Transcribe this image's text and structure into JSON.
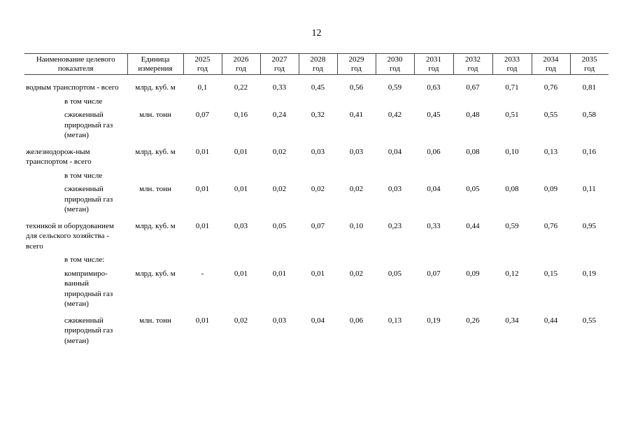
{
  "page_number": "12",
  "table": {
    "header": {
      "name": [
        "Наименование целевого",
        "показателя"
      ],
      "unit": [
        "Единица",
        "измерения"
      ],
      "years": [
        [
          "2025",
          "год"
        ],
        [
          "2026",
          "год"
        ],
        [
          "2027",
          "год"
        ],
        [
          "2028",
          "год"
        ],
        [
          "2029",
          "год"
        ],
        [
          "2030",
          "год"
        ],
        [
          "2031",
          "год"
        ],
        [
          "2032",
          "год"
        ],
        [
          "2033",
          "год"
        ],
        [
          "2034",
          "год"
        ],
        [
          "2035",
          "год"
        ]
      ]
    },
    "rows": [
      {
        "name": "водным транспортом - всего",
        "sub": false,
        "unit": "млрд. куб. м",
        "values": [
          "0,1",
          "0,22",
          "0,33",
          "0,45",
          "0,56",
          "0,59",
          "0,63",
          "0,67",
          "0,71",
          "0,76",
          "0,81"
        ]
      },
      {
        "name": "в том числе",
        "sub": true,
        "unit": "",
        "values": []
      },
      {
        "name": "сжиженный природный газ (метан)",
        "sub": true,
        "unit": "млн. тонн",
        "values": [
          "0,07",
          "0,16",
          "0,24",
          "0,32",
          "0,41",
          "0,42",
          "0,45",
          "0,48",
          "0,51",
          "0,55",
          "0,58"
        ]
      },
      {
        "name": "железнодорож-ным транспортом - всего",
        "sub": false,
        "unit": "млрд. куб. м",
        "values": [
          "0,01",
          "0,01",
          "0,02",
          "0,03",
          "0,03",
          "0,04",
          "0,06",
          "0,08",
          "0,10",
          "0,13",
          "0,16"
        ]
      },
      {
        "name": "в том числе",
        "sub": true,
        "unit": "",
        "values": []
      },
      {
        "name": "сжиженный природный газ (метан)",
        "sub": true,
        "unit": "млн. тонн",
        "values": [
          "0,01",
          "0,01",
          "0,02",
          "0,02",
          "0,02",
          "0,03",
          "0,04",
          "0,05",
          "0,08",
          "0,09",
          "0,11"
        ]
      },
      {
        "name": "техникой и оборудованием для сельского хозяйства - всего",
        "sub": false,
        "unit": "млрд. куб. м",
        "values": [
          "0,01",
          "0,03",
          "0,05",
          "0,07",
          "0,10",
          "0,23",
          "0,33",
          "0,44",
          "0,59",
          "0,76",
          "0,95"
        ]
      },
      {
        "name": "в том числе:",
        "sub": true,
        "unit": "",
        "values": []
      },
      {
        "name": "компримиро-ванный природный газ (метан)",
        "sub": true,
        "unit": "млрд. куб. м",
        "values": [
          "-",
          "0,01",
          "0,01",
          "0,01",
          "0,02",
          "0,05",
          "0,07",
          "0,09",
          "0,12",
          "0,15",
          "0,19"
        ]
      },
      {
        "name": "сжиженный природный газ (метан)",
        "sub": true,
        "unit": "млн. тонн",
        "values": [
          "0,01",
          "0,02",
          "0,03",
          "0,04",
          "0,06",
          "0,13",
          "0,19",
          "0,26",
          "0,34",
          "0,44",
          "0,55"
        ]
      }
    ]
  }
}
